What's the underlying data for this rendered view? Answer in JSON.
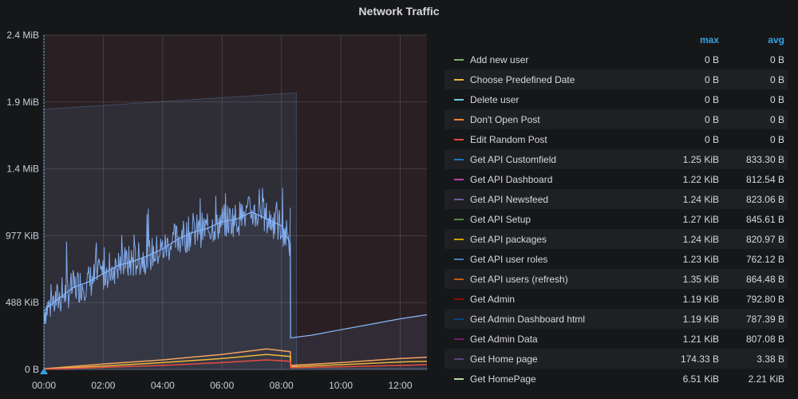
{
  "panel": {
    "title": "Network Traffic"
  },
  "legend": {
    "headers": {
      "max": "max",
      "avg": "avg"
    },
    "items": [
      {
        "name": "Add new user",
        "max": "0 B",
        "avg": "0 B",
        "color": "#7eb26d"
      },
      {
        "name": "Choose Predefined Date",
        "max": "0 B",
        "avg": "0 B",
        "color": "#eab839"
      },
      {
        "name": "Delete user",
        "max": "0 B",
        "avg": "0 B",
        "color": "#6ed0e0"
      },
      {
        "name": "Don't Open Post",
        "max": "0 B",
        "avg": "0 B",
        "color": "#ef843c"
      },
      {
        "name": "Edit Random Post",
        "max": "0 B",
        "avg": "0 B",
        "color": "#e24d42"
      },
      {
        "name": "Get API Customfield",
        "max": "1.25 KiB",
        "avg": "833.30 B",
        "color": "#1f78c1"
      },
      {
        "name": "Get API Dashboard",
        "max": "1.22 KiB",
        "avg": "812.54 B",
        "color": "#ba43a9"
      },
      {
        "name": "Get API Newsfeed",
        "max": "1.24 KiB",
        "avg": "823.06 B",
        "color": "#705da0"
      },
      {
        "name": "Get API Setup",
        "max": "1.27 KiB",
        "avg": "845.61 B",
        "color": "#508642"
      },
      {
        "name": "Get API packages",
        "max": "1.24 KiB",
        "avg": "820.97 B",
        "color": "#cca300"
      },
      {
        "name": "Get API user roles",
        "max": "1.23 KiB",
        "avg": "762.12 B",
        "color": "#447ebc"
      },
      {
        "name": "Get API users (refresh)",
        "max": "1.35 KiB",
        "avg": "864.48 B",
        "color": "#c15c17"
      },
      {
        "name": "Get Admin",
        "max": "1.19 KiB",
        "avg": "792.80 B",
        "color": "#890f02"
      },
      {
        "name": "Get Admin Dashboard html",
        "max": "1.19 KiB",
        "avg": "787.39 B",
        "color": "#0a437c"
      },
      {
        "name": "Get Admin Data",
        "max": "1.21 KiB",
        "avg": "807.08 B",
        "color": "#6d1f62"
      },
      {
        "name": "Get Home page",
        "max": "174.33 B",
        "avg": "3.38 B",
        "color": "#584477"
      },
      {
        "name": "Get HomePage",
        "max": "6.51 KiB",
        "avg": "2.21 KiB",
        "color": "#b7dbab"
      }
    ]
  },
  "chart_data": {
    "type": "area",
    "y_ticks": [
      "0 B",
      "488 KiB",
      "977 KiB",
      "1.4 MiB",
      "1.9 MiB",
      "2.4 MiB"
    ],
    "x_ticks": [
      "00:00",
      "02:00",
      "04:00",
      "06:00",
      "08:00",
      "10:00",
      "12:00"
    ],
    "ylim_kib": [
      0,
      2442
    ],
    "xlim_hours": [
      0,
      12.9
    ],
    "grid": true,
    "legend_position": "right",
    "series": [
      {
        "color": "#8ab8ff",
        "x": [
          0,
          0.5,
          1,
          1.5,
          2,
          2.5,
          3,
          3.5,
          4,
          4.5,
          5,
          5.5,
          6,
          6.5,
          7,
          7.5,
          8,
          8.3,
          8.31,
          9,
          10,
          11,
          12,
          12.9
        ],
        "y": [
          430,
          520,
          600,
          640,
          700,
          760,
          790,
          830,
          880,
          950,
          1000,
          1030,
          1080,
          1100,
          1150,
          1100,
          1050,
          920,
          230,
          250,
          290,
          330,
          370,
          400
        ]
      },
      {
        "color": "#f2a35c",
        "x": [
          0,
          2,
          4,
          6,
          7.5,
          8.3,
          8.31,
          10,
          12,
          12.9
        ],
        "y": [
          5,
          40,
          70,
          110,
          150,
          130,
          30,
          50,
          80,
          90
        ]
      },
      {
        "color": "#eab839",
        "x": [
          0,
          2,
          4,
          6,
          7.5,
          8.3,
          8.31,
          10,
          12,
          12.9
        ],
        "y": [
          3,
          25,
          50,
          80,
          110,
          95,
          20,
          35,
          55,
          60
        ]
      },
      {
        "color": "#e24d42",
        "x": [
          0,
          2,
          4,
          6,
          7.5,
          8.3,
          8.31,
          10,
          12,
          12.9
        ],
        "y": [
          2,
          15,
          30,
          50,
          70,
          60,
          12,
          20,
          30,
          35
        ]
      }
    ],
    "total_area": {
      "x": [
        0,
        8.5,
        8.51,
        12.9
      ],
      "y": [
        1900,
        2020,
        10,
        10
      ]
    }
  }
}
